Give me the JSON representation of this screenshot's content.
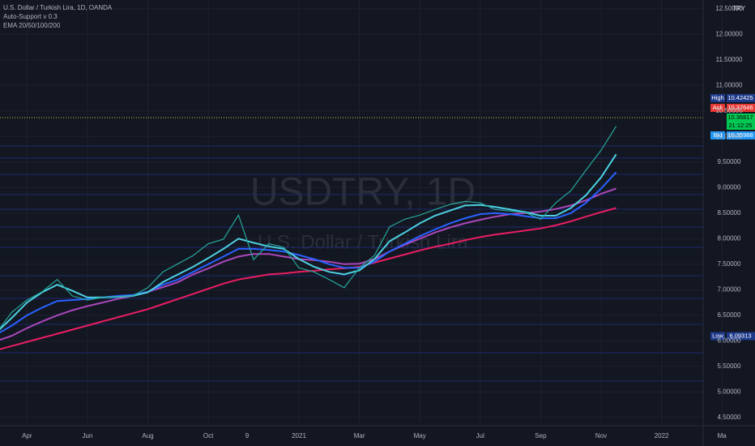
{
  "chart_data": {
    "type": "line",
    "title": "U.S. Dollar / Turkish Lira, 1D, OANDA",
    "indicators": [
      "Auto-Support v 0.3",
      "EMA 20/50/100/200"
    ],
    "watermark": "USDTRY, 1D",
    "watermark_subtitle": "U.S. Dollar / Turkish Lira",
    "currency": "TRY",
    "x_marker": "9",
    "categories": [
      null,
      null,
      "Apr",
      null,
      null,
      null,
      "Jun",
      null,
      null,
      null,
      "Aug",
      null,
      null,
      null,
      "Oct",
      null,
      null,
      null,
      null,
      null,
      "2021",
      null,
      null,
      null,
      "Mar",
      null,
      null,
      null,
      "May",
      null,
      null,
      null,
      "Jul",
      null,
      null,
      null,
      "Sep",
      null,
      null,
      null,
      "Nov",
      null,
      null,
      null,
      "2022",
      null,
      null,
      null,
      "Ma"
    ],
    "ylim": [
      4.34,
      12.67
    ],
    "yticks": [
      {
        "value": 4.5,
        "label": "4.50000"
      },
      {
        "value": 5,
        "label": "5.00000"
      },
      {
        "value": 5.5,
        "label": "5.50000"
      },
      {
        "value": 6,
        "label": "6.00000"
      },
      {
        "value": 6.5,
        "label": "6.50000"
      },
      {
        "value": 7,
        "label": "7.00000"
      },
      {
        "value": 7.5,
        "label": "7.50000"
      },
      {
        "value": 8,
        "label": "8.00000"
      },
      {
        "value": 8.5,
        "label": "8.50000"
      },
      {
        "value": 9,
        "label": "9.00000"
      },
      {
        "value": 9.5,
        "label": "9.50000"
      },
      {
        "value": 10,
        "label": "10.00000"
      },
      {
        "value": 10.5,
        "label": "10.50000"
      },
      {
        "value": 11,
        "label": "11.00000"
      },
      {
        "value": 11.5,
        "label": "11.50000"
      },
      {
        "value": 12,
        "label": "12.00000"
      },
      {
        "value": 12.5,
        "label": "12.50000"
      }
    ],
    "grid": true,
    "series": [
      {
        "color": "#e91e63",
        "values": [
          5.82,
          5.9,
          5.98,
          6.06,
          6.14,
          6.22,
          6.3,
          6.38,
          6.46,
          6.54,
          6.62,
          6.72,
          6.82,
          6.92,
          7.02,
          7.12,
          7.2,
          7.25,
          7.3,
          7.32,
          7.35,
          7.37,
          7.4,
          7.42,
          7.45,
          7.53,
          7.61,
          7.69,
          7.77,
          7.84,
          7.9,
          7.97,
          8.03,
          8.08,
          8.12,
          8.16,
          8.2,
          8.26,
          8.34,
          8.43,
          8.52,
          8.6,
          null,
          null,
          null,
          null,
          null,
          null,
          null
        ]
      },
      {
        "color": "#ab47bc",
        "values": [
          6.0,
          6.1,
          6.25,
          6.38,
          6.5,
          6.6,
          6.68,
          6.75,
          6.82,
          6.88,
          6.96,
          7.05,
          7.15,
          7.3,
          7.42,
          7.55,
          7.65,
          7.7,
          7.7,
          7.65,
          7.6,
          7.58,
          7.55,
          7.5,
          7.51,
          7.6,
          7.75,
          7.88,
          8.0,
          8.12,
          8.22,
          8.3,
          8.37,
          8.43,
          8.48,
          8.5,
          8.53,
          8.58,
          8.65,
          8.75,
          8.88,
          8.98,
          null,
          null,
          null,
          null,
          null,
          null,
          null
        ]
      },
      {
        "color": "#2962ff",
        "values": [
          6.13,
          6.3,
          6.5,
          6.65,
          6.78,
          6.8,
          6.82,
          6.85,
          6.88,
          6.9,
          6.96,
          7.1,
          7.2,
          7.35,
          7.5,
          7.65,
          7.8,
          7.8,
          7.78,
          7.75,
          7.68,
          7.6,
          7.5,
          7.43,
          7.43,
          7.55,
          7.75,
          7.9,
          8.05,
          8.18,
          8.3,
          8.4,
          8.48,
          8.5,
          8.48,
          8.44,
          8.4,
          8.4,
          8.5,
          8.7,
          8.98,
          9.3,
          null,
          null,
          null,
          null,
          null,
          null,
          null
        ]
      },
      {
        "color": "#4dd0e1",
        "values": [
          6.17,
          6.45,
          6.75,
          6.95,
          7.1,
          6.98,
          6.85,
          6.85,
          6.86,
          6.88,
          6.95,
          7.15,
          7.3,
          7.45,
          7.62,
          7.8,
          8.0,
          7.92,
          7.85,
          7.8,
          7.6,
          7.45,
          7.35,
          7.3,
          7.38,
          7.6,
          7.95,
          8.12,
          8.3,
          8.45,
          8.55,
          8.65,
          8.66,
          8.62,
          8.57,
          8.52,
          8.45,
          8.45,
          8.6,
          8.85,
          9.2,
          9.65,
          null,
          null,
          null,
          null,
          null,
          null,
          null
        ]
      },
      {
        "color": "#26a69a",
        "values": [
          6.17,
          6.56,
          6.8,
          6.96,
          7.2,
          6.88,
          6.8,
          6.85,
          6.86,
          6.88,
          7.04,
          7.35,
          7.51,
          7.67,
          7.9,
          7.99,
          8.46,
          7.59,
          7.9,
          7.83,
          7.43,
          7.35,
          7.2,
          7.04,
          7.43,
          7.67,
          8.23,
          8.38,
          8.46,
          8.57,
          8.67,
          8.73,
          8.7,
          8.57,
          8.54,
          8.51,
          8.38,
          8.7,
          8.94,
          9.34,
          9.73,
          10.2,
          null,
          null,
          null,
          null,
          null,
          null,
          null
        ]
      }
    ],
    "last_price": {
      "value": 10.36817,
      "label": "10.36817"
    },
    "countdown": "21:12:25",
    "price_labels": [
      {
        "tag": "High",
        "text": "10.42425"
      },
      {
        "tag": "Ask",
        "text": "10.37646"
      },
      {
        "tag": "Bid",
        "text": "10.35988"
      },
      {
        "tag": "Low",
        "text": "6.09313"
      }
    ]
  }
}
